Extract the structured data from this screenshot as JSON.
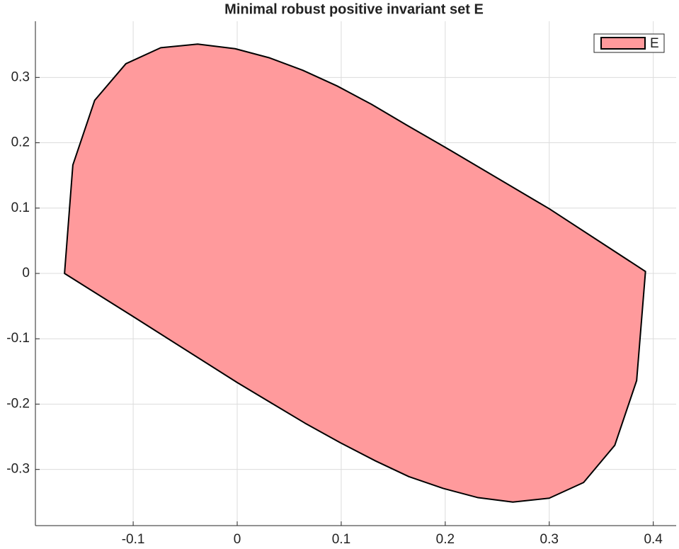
{
  "chart_data": {
    "type": "polygon",
    "title": "Minimal robust positive invariant set E",
    "series": [
      {
        "name": "E",
        "color": "#ff9a9c",
        "edge_color": "#000000",
        "x": [
          -0.166,
          -0.158,
          -0.137,
          -0.107,
          -0.0735,
          -0.038,
          -0.002,
          0.031,
          0.063,
          0.096,
          0.129,
          0.163,
          0.199,
          0.3,
          0.3925,
          0.384,
          0.363,
          0.333,
          0.3,
          0.265,
          0.231,
          0.198,
          0.165,
          0.133,
          0.099,
          0.065,
          0,
          -0.1
        ],
        "values": [
          0,
          0.166,
          0.265,
          0.321,
          0.3455,
          0.351,
          0.344,
          0.33,
          0.311,
          0.287,
          0.259,
          0.227,
          0.194,
          0.099,
          0.003,
          -0.164,
          -0.263,
          -0.32,
          -0.344,
          -0.35,
          -0.343,
          -0.329,
          -0.311,
          -0.287,
          -0.259,
          -0.229,
          -0.167,
          -0.066
        ]
      }
    ],
    "xlim": [
      -0.194,
      0.422
    ],
    "ylim": [
      -0.386,
      0.386
    ],
    "xticks": [
      -0.1,
      0,
      0.1,
      0.2,
      0.3,
      0.4
    ],
    "yticks": [
      -0.3,
      -0.2,
      -0.1,
      0,
      0.1,
      0.2,
      0.3
    ],
    "grid": true,
    "legend": "top-right"
  }
}
